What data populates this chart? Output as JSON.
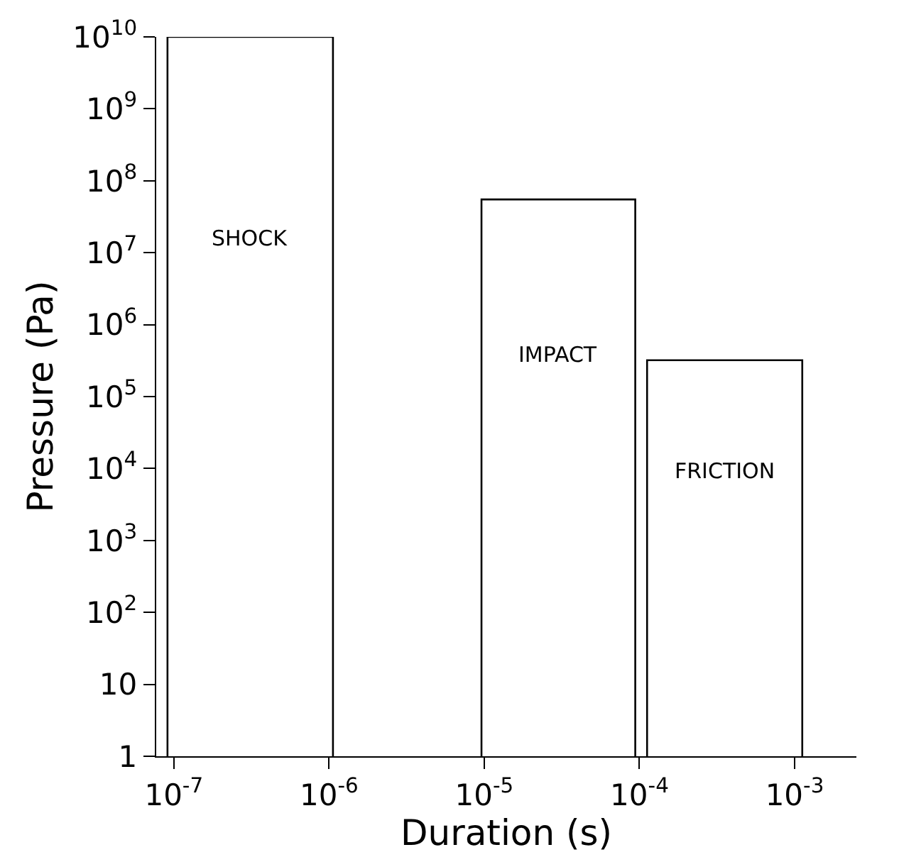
{
  "chart_data": {
    "type": "line",
    "xlabel": "Duration (s)",
    "ylabel": "Pressure (Pa)",
    "log": "xy",
    "grid": false,
    "legend": false,
    "marker": "none",
    "line_style": "solid",
    "xlim": [
      7.7e-08,
      0.0025
    ],
    "xticks": [
      {
        "value": 1e-07,
        "label": "10$^{-7}$"
      },
      {
        "value": 1e-06,
        "label": "10$^{-6}$"
      },
      {
        "value": 1e-05,
        "label": "10$^{-5}$"
      },
      {
        "value": 0.0001,
        "label": "10$^{-4}$"
      },
      {
        "value": 0.001,
        "label": "10$^{-3}$"
      }
    ],
    "ylim": [
      1,
      10000000000.0
    ],
    "yticks": [
      1,
      10,
      {
        "value": 100,
        "label": "10$^{2}$"
      },
      {
        "value": 1000,
        "label": "10$^{3}$"
      },
      {
        "value": 10000.0,
        "label": "10$^{4}$"
      },
      {
        "value": 100000.0,
        "label": "10$^{5}$"
      },
      {
        "value": 1000000.0,
        "label": "10$^{6}$"
      },
      {
        "value": 10000000.0,
        "label": "10$^{7}$"
      },
      {
        "value": 100000000.0,
        "label": "10$^{8}$"
      },
      {
        "value": 1000000000.0,
        "label": "10$^{9}$"
      },
      {
        "value": 10000000000.0,
        "label": "10$^{10}$"
      }
    ],
    "series": [
      {
        "name": "SHOCK",
        "color": "#000000",
        "x": [
          9.1e-08,
          9.1e-08,
          1.06e-06,
          1.06e-06
        ],
        "values": [
          1,
          10000000000.0,
          10000000000.0,
          1
        ]
      },
      {
        "name": "IMPACT",
        "color": "#000000",
        "x": [
          9.6e-06,
          9.6e-06,
          9.4e-05,
          9.4e-05
        ],
        "values": [
          1,
          55000000.0,
          55000000.0,
          1
        ]
      },
      {
        "name": "FRICTION",
        "color": "#000000",
        "x": [
          0.000112,
          0.000112,
          0.00112,
          0.00112
        ],
        "values": [
          1,
          320000.0,
          320000.0,
          1
        ]
      }
    ]
  }
}
